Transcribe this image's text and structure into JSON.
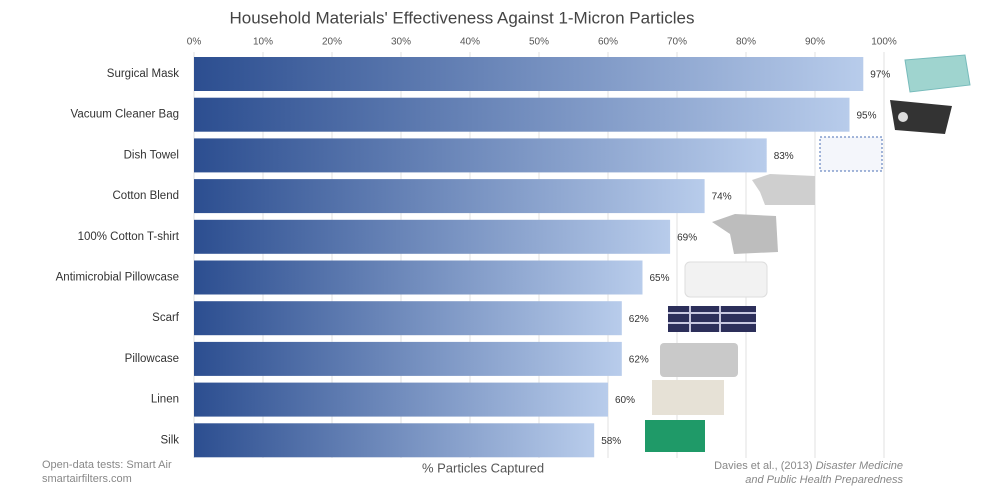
{
  "chart_data": {
    "type": "bar",
    "orientation": "horizontal",
    "title": "Household Materials' Effectiveness Against 1-Micron Particles",
    "categories": [
      "Surgical Mask",
      "Vacuum Cleaner Bag",
      "Dish Towel",
      "Cotton Blend",
      "100% Cotton T-shirt",
      "Antimicrobial Pillowcase",
      "Scarf",
      "Pillowcase",
      "Linen",
      "Silk"
    ],
    "values": [
      97,
      95,
      83,
      74,
      69,
      65,
      62,
      62,
      60,
      58
    ],
    "value_labels": [
      "97%",
      "95%",
      "83%",
      "74%",
      "69%",
      "65%",
      "62%",
      "62%",
      "60%",
      "58%"
    ],
    "color_start": "#2c4e90",
    "color_end": "#b8cceb",
    "xlim": [
      0,
      100
    ],
    "xticks": [
      {
        "value": 0,
        "label": "0%"
      },
      {
        "value": 10,
        "label": "10%"
      },
      {
        "value": 20,
        "label": "20%"
      },
      {
        "value": 30,
        "label": "30%"
      },
      {
        "value": 40,
        "label": "40%"
      },
      {
        "value": 50,
        "label": "50%"
      },
      {
        "value": 60,
        "label": "60%"
      },
      {
        "value": 70,
        "label": "70%"
      },
      {
        "value": 80,
        "label": "80%"
      },
      {
        "value": 90,
        "label": "90%"
      },
      {
        "value": 100,
        "label": "100%"
      }
    ],
    "grid": true,
    "xlabel": "% Particles Captured",
    "source": {
      "line1": "Open-data tests: Smart Air",
      "line2": "smartairfilters.com"
    },
    "citation": {
      "authors": "Davies et al., (2013)",
      "journal_line1": "Disaster Medicine",
      "journal_line2": "and Public Health Preparedness"
    }
  }
}
